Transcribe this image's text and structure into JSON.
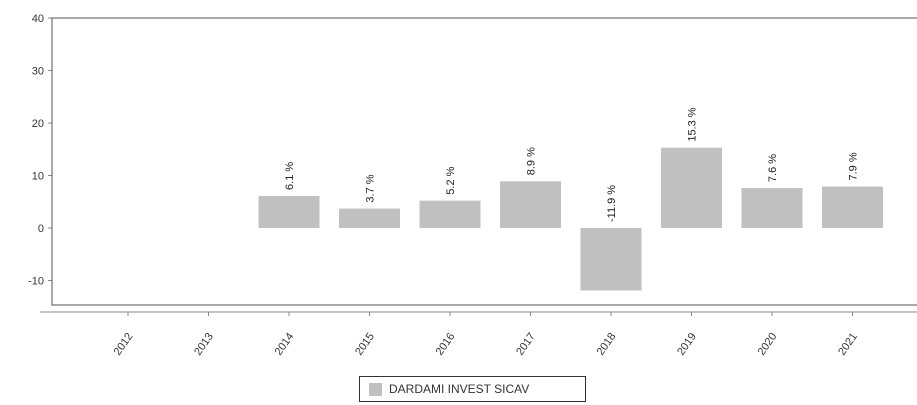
{
  "colors": {
    "bar": "#c0c0c0",
    "axis": "#888888",
    "plot_border": "#555555",
    "text": "#333333"
  },
  "chart_data": {
    "type": "bar",
    "categories": [
      "2012",
      "2013",
      "2014",
      "2015",
      "2016",
      "2017",
      "2018",
      "2019",
      "2020",
      "2021"
    ],
    "series": [
      {
        "name": "DARDAMI INVEST SICAV",
        "values": [
          null,
          null,
          6.1,
          3.7,
          5.2,
          8.9,
          -11.9,
          15.3,
          7.6,
          7.9
        ]
      }
    ],
    "data_labels": [
      "",
      "",
      "6.1 %",
      "3.7 %",
      "5.2 %",
      "8.9 %",
      "-11.9 %",
      "15.3 %",
      "7.6 %",
      "7.9 %"
    ],
    "y_ticks": [
      "40",
      "30",
      "20",
      "10",
      "0",
      "-10"
    ],
    "ylim": [
      -15,
      40
    ],
    "legend_position": "bottom",
    "grid": false
  }
}
